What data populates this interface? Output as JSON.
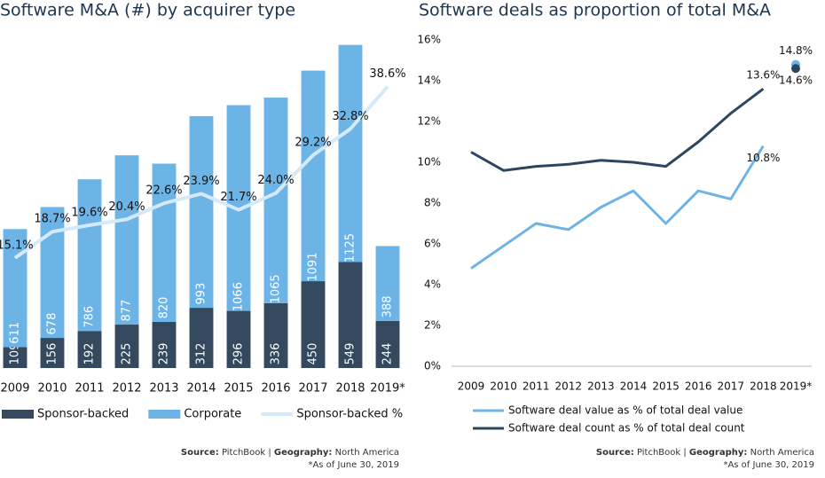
{
  "chart_data": [
    {
      "type": "bar",
      "title": "Software M&A (#) by acquirer type",
      "categories": [
        "2009",
        "2010",
        "2011",
        "2012",
        "2013",
        "2014",
        "2015",
        "2016",
        "2017",
        "2018",
        "2019*"
      ],
      "series": [
        {
          "name": "Sponsor-backed",
          "color": "#34495e",
          "values": [
            109,
            156,
            192,
            225,
            239,
            312,
            296,
            336,
            450,
            549,
            244
          ]
        },
        {
          "name": "Corporate",
          "color": "#6db4e6",
          "values": [
            611,
            678,
            786,
            877,
            820,
            993,
            1066,
            1065,
            1091,
            1125,
            388
          ]
        },
        {
          "name": "Sponsor-backed %",
          "color": "#d4eaf8",
          "axis": "y2",
          "values": [
            15.1,
            18.7,
            19.6,
            20.4,
            22.6,
            23.9,
            21.7,
            24.0,
            29.2,
            32.8,
            38.6
          ],
          "value_labels": [
            "15.1%",
            "18.7%",
            "19.6%",
            "20.4%",
            "22.6%",
            "23.9%",
            "21.7%",
            "24.0%",
            "29.2%",
            "32.8%",
            "38.6%"
          ]
        }
      ],
      "ylim": [
        0,
        1700
      ],
      "y2lim": [
        0,
        45
      ],
      "notes": {
        "source_label": "Source:",
        "source": "PitchBook |",
        "geography_label": "Geography:",
        "geography": "North America",
        "footnote": "*As of June 30, 2019"
      }
    },
    {
      "type": "line",
      "title": "Software deals as proportion of total M&A",
      "categories": [
        "2009",
        "2010",
        "2011",
        "2012",
        "2013",
        "2014",
        "2015",
        "2016",
        "2017",
        "2018",
        "2019*"
      ],
      "series": [
        {
          "name": "Software deal value as % of total deal value",
          "color": "#6db4e6",
          "values": [
            4.8,
            5.9,
            7.0,
            6.7,
            7.8,
            8.6,
            7.0,
            8.6,
            8.2,
            10.8,
            14.8
          ],
          "value_labels": [
            null,
            null,
            null,
            null,
            null,
            null,
            null,
            null,
            null,
            "10.8%",
            "14.8%"
          ]
        },
        {
          "name": "Software deal count as % of total deal count",
          "color": "#2e4560",
          "values": [
            10.5,
            9.6,
            9.8,
            9.9,
            10.1,
            10.0,
            9.8,
            11.0,
            12.4,
            13.6,
            14.6
          ],
          "value_labels": [
            null,
            null,
            null,
            null,
            null,
            null,
            null,
            null,
            null,
            "13.6%",
            "14.6%"
          ]
        }
      ],
      "ylim": [
        0,
        16
      ],
      "yticks": [
        {
          "value": 0,
          "label": "0%"
        },
        {
          "value": 2,
          "label": "2%"
        },
        {
          "value": 4,
          "label": "4%"
        },
        {
          "value": 6,
          "label": "6%"
        },
        {
          "value": 8,
          "label": "8%"
        },
        {
          "value": 10,
          "label": "10%"
        },
        {
          "value": 12,
          "label": "12%"
        },
        {
          "value": 14,
          "label": "14%"
        },
        {
          "value": 16,
          "label": "16%"
        }
      ],
      "notes": {
        "source_label": "Source:",
        "source": "PitchBook |",
        "geography_label": "Geography:",
        "geography": "North America",
        "footnote": "*As of June 30, 2019"
      }
    }
  ]
}
